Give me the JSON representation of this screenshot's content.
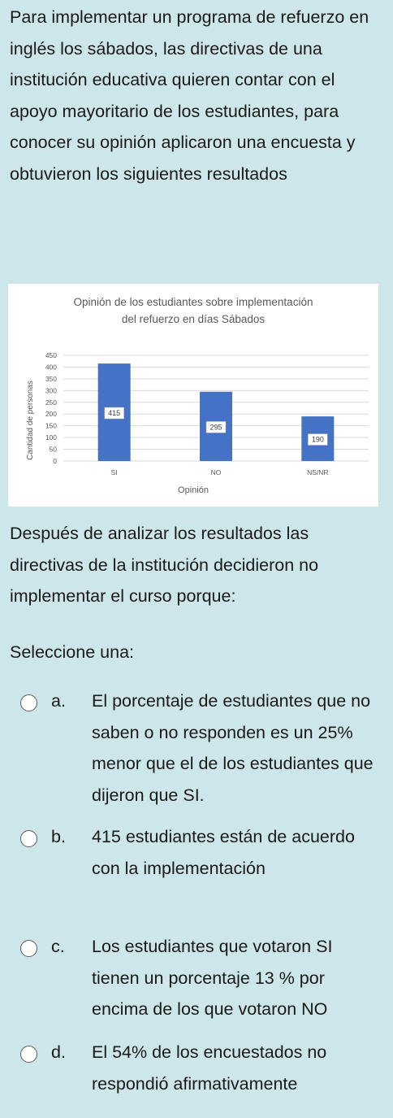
{
  "question": {
    "intro": "Para implementar un programa de refuerzo en inglés los sábados, las directivas de una institución educativa quieren contar con el apoyo mayoritario de los estudiantes, para conocer su opinión aplicaron una encuesta y obtuvieron los siguientes resultados",
    "after_chart": "Después de analizar los resultados las directivas de la institución decidieron no implementar el curso porque:",
    "prompt": "Seleccione una:"
  },
  "chart_data": {
    "type": "bar",
    "title_line1": "Opinión de los estudiantes sobre implementación",
    "title_line2": "del refuerzo en días Sábados",
    "xlabel": "Opinión",
    "ylabel": "Cantidad de personas",
    "categories": [
      "SI",
      "NO",
      "NS/NR"
    ],
    "values": [
      415,
      295,
      190
    ],
    "value_labels": [
      "415",
      "295",
      "190"
    ],
    "ylim": [
      0,
      450
    ],
    "yticks": [
      0,
      50,
      100,
      150,
      200,
      250,
      300,
      350,
      400,
      450
    ],
    "grid": true,
    "bar_color": "#4472c4"
  },
  "options": [
    {
      "letter": "a.",
      "text": "El porcentaje de estudiantes que no saben o no responden es un 25% menor que el de los estudiantes que dijeron que SI."
    },
    {
      "letter": "b.",
      "text": "415 estudiantes están de acuerdo con la implementación"
    },
    {
      "letter": "c.",
      "text": "Los estudiantes que votaron SI tienen un porcentaje 13 % por encima de los que votaron NO"
    },
    {
      "letter": "d.",
      "text": "El 54% de los encuestados no respondió afirmativamente"
    }
  ]
}
